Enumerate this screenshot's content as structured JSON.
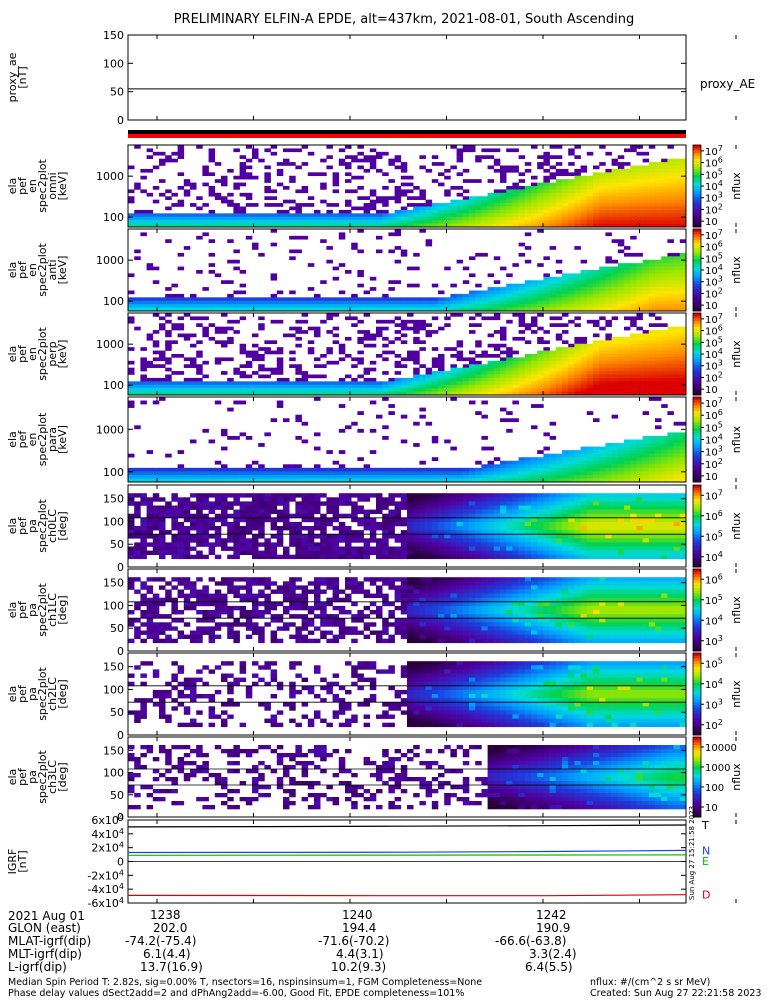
{
  "title": "PRELIMINARY ELFIN-A EPDE, alt=437km, 2021-08-01, South Ascending",
  "chart_data": [
    {
      "type": "line",
      "panel": "proxy_ae",
      "ylabel": [
        "proxy_ae",
        "[nT]"
      ],
      "yticks": [
        "150",
        "100",
        "50",
        "0"
      ],
      "ylim": [
        0,
        150
      ],
      "series": [
        {
          "name": "proxy_AE",
          "values": [
            55,
            55
          ]
        }
      ]
    },
    {
      "type": "heatmap",
      "panel": "ela_pef_en_spec2plot_omni",
      "ylabel": [
        "ela",
        "pef",
        "en",
        "spec2plot",
        "omni",
        "[keV]"
      ],
      "yticks": [
        "1000",
        "100"
      ],
      "ylim": [
        60,
        7000
      ],
      "colorbar": {
        "label": "nflux",
        "scale": "log",
        "ticks": [
          "10^7",
          "10^6",
          "10^5",
          "10^4",
          "10^3",
          "10^2",
          "10"
        ]
      }
    },
    {
      "type": "heatmap",
      "panel": "ela_pef_en_spec2plot_anti",
      "ylabel": [
        "ela",
        "pef",
        "en",
        "spec2plot",
        "anti",
        "[keV]"
      ],
      "yticks": [
        "1000",
        "100"
      ],
      "ylim": [
        60,
        7000
      ],
      "colorbar": {
        "label": "nflux",
        "scale": "log",
        "ticks": [
          "10^7",
          "10^6",
          "10^5",
          "10^4",
          "10^3",
          "10^2",
          "10"
        ]
      }
    },
    {
      "type": "heatmap",
      "panel": "ela_pef_en_spec2plot_perp",
      "ylabel": [
        "ela",
        "pef",
        "en",
        "spec2plot",
        "perp",
        "[keV]"
      ],
      "yticks": [
        "1000",
        "100"
      ],
      "ylim": [
        60,
        7000
      ],
      "colorbar": {
        "label": "nflux",
        "scale": "log",
        "ticks": [
          "10^7",
          "10^6",
          "10^5",
          "10^4",
          "10^3",
          "10^2",
          "10"
        ]
      }
    },
    {
      "type": "heatmap",
      "panel": "ela_pef_en_spec2plot_para",
      "ylabel": [
        "ela",
        "pef",
        "en",
        "spec2plot",
        "para",
        "[keV]"
      ],
      "yticks": [
        "1000",
        "100"
      ],
      "ylim": [
        60,
        7000
      ],
      "colorbar": {
        "label": "nflux",
        "scale": "log",
        "ticks": [
          "10^7",
          "10^6",
          "10^5",
          "10^4",
          "10^3",
          "10^2",
          "10"
        ]
      }
    },
    {
      "type": "heatmap",
      "panel": "ela_pef_pa_spec2plot_ch0LC",
      "ylabel": [
        "ela",
        "pef",
        "pa",
        "spec2plot",
        "ch0LC",
        "[deg]"
      ],
      "yticks": [
        "150",
        "100",
        "50",
        "0"
      ],
      "ylim": [
        0,
        180
      ],
      "colorbar": {
        "label": "nflux",
        "scale": "log",
        "ticks": [
          "10^7",
          "10^6",
          "10^5",
          "10^4"
        ]
      }
    },
    {
      "type": "heatmap",
      "panel": "ela_pef_pa_spec2plot_ch1LC",
      "ylabel": [
        "ela",
        "pef",
        "pa",
        "spec2plot",
        "ch1LC",
        "[deg]"
      ],
      "yticks": [
        "150",
        "100",
        "50",
        "0"
      ],
      "ylim": [
        0,
        180
      ],
      "colorbar": {
        "label": "nflux",
        "scale": "log",
        "ticks": [
          "10^6",
          "10^5",
          "10^4",
          "10^3"
        ]
      }
    },
    {
      "type": "heatmap",
      "panel": "ela_pef_pa_spec2plot_ch2LC",
      "ylabel": [
        "ela",
        "pef",
        "pa",
        "spec2plot",
        "ch2LC",
        "[deg]"
      ],
      "yticks": [
        "150",
        "100",
        "50",
        "0"
      ],
      "ylim": [
        0,
        180
      ],
      "colorbar": {
        "label": "nflux",
        "scale": "log",
        "ticks": [
          "10^5",
          "10^4",
          "10^3",
          "10^2"
        ]
      }
    },
    {
      "type": "heatmap",
      "panel": "ela_pef_pa_spec2plot_ch3LC",
      "ylabel": [
        "ela",
        "pef",
        "pa",
        "spec2plot",
        "ch3LC",
        "[deg]"
      ],
      "yticks": [
        "150",
        "100",
        "50",
        "0"
      ],
      "ylim": [
        0,
        180
      ],
      "colorbar": {
        "label": "nflux",
        "scale": "log",
        "ticks": [
          "10000",
          "1000",
          "100",
          "10"
        ]
      }
    },
    {
      "type": "line",
      "panel": "igrf",
      "ylabel": [
        "IGRF",
        "[nT]"
      ],
      "yticks": [
        "6x10^4",
        "4x10^4",
        "2x10^4",
        "0",
        "-2x10^4",
        "-4x10^4",
        "-6x10^4"
      ],
      "ylim": [
        -60000,
        60000
      ],
      "series": [
        {
          "name": "T",
          "color": "#000000",
          "values": [
            50000,
            50500,
            51000,
            51800,
            52800
          ]
        },
        {
          "name": "N",
          "color": "#2040e0",
          "values": [
            13000,
            13200,
            13500,
            14500,
            16000
          ]
        },
        {
          "name": "E",
          "color": "#00c000",
          "values": [
            9000,
            9100,
            9200,
            9400,
            9600
          ]
        },
        {
          "name": "D",
          "color": "#e00000",
          "values": [
            -49000,
            -49200,
            -49500,
            -49500,
            -48000
          ]
        }
      ]
    }
  ],
  "time_axis": {
    "date_label": "2021 Aug 01",
    "ticks": [
      "1238",
      "1240",
      "1242"
    ]
  },
  "ephemeris_rows": [
    {
      "label": "GLON (east)",
      "values": [
        "202.0",
        "194.4",
        "190.9"
      ]
    },
    {
      "label": "MLAT-igrf(dip)",
      "values": [
        "-74.2(-75.4)",
        "-71.6(-70.2)",
        "-66.6(-63.8)"
      ]
    },
    {
      "label": "MLT-igrf(dip)",
      "values": [
        "6.1(4.4)",
        "4.4(3.1)",
        "3.3(2.4)"
      ]
    },
    {
      "label": "L-igrf(dip)",
      "values": [
        "13.7(16.9)",
        "10.2(9.3)",
        "6.4(5.5)"
      ]
    }
  ],
  "side_stamp": "Sun Aug 27 15:21:58 2023",
  "footer": {
    "line1": "Median Spin Period T: 2.82s, sig=0.00% T, nsectors=16, nspinsinsum=1, FGM Completeness=None",
    "line2": "Phase delay values dSect2add=2 and dPhAng2add=-6.00, Good Fit, EPDE completeness=101%",
    "units": "nflux: #/(cm^2 s sr MeV)",
    "created": "Created: Sun Aug 27 22:21:58 2023"
  }
}
